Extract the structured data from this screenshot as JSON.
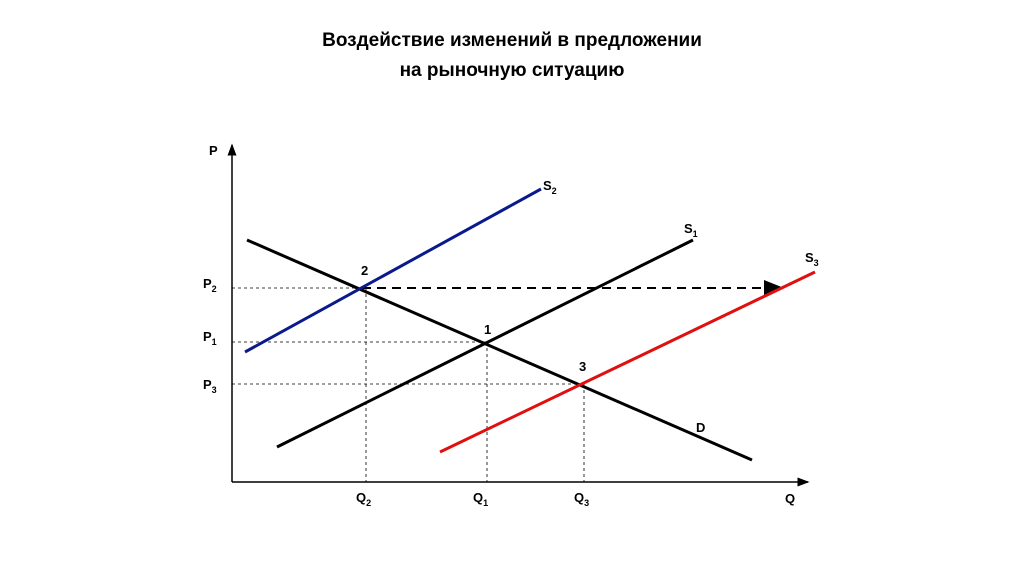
{
  "header": {
    "title": [
      "Воздействие изменений в предложении",
      "на рыночную ситуацию"
    ]
  },
  "axes": {
    "y": "P",
    "x": "Q"
  },
  "curves": {
    "s2": {
      "base": "S",
      "sub": "2"
    },
    "s1": {
      "base": "S",
      "sub": "1"
    },
    "s3": {
      "base": "S",
      "sub": "3"
    },
    "d": "D"
  },
  "points": [
    "1",
    "2",
    "3"
  ],
  "prices": [
    {
      "base": "P",
      "sub": "2"
    },
    {
      "base": "P",
      "sub": "1"
    },
    {
      "base": "P",
      "sub": "3"
    }
  ],
  "quantities": [
    {
      "base": "Q",
      "sub": "2"
    },
    {
      "base": "Q",
      "sub": "1"
    },
    {
      "base": "Q",
      "sub": "3"
    }
  ]
}
